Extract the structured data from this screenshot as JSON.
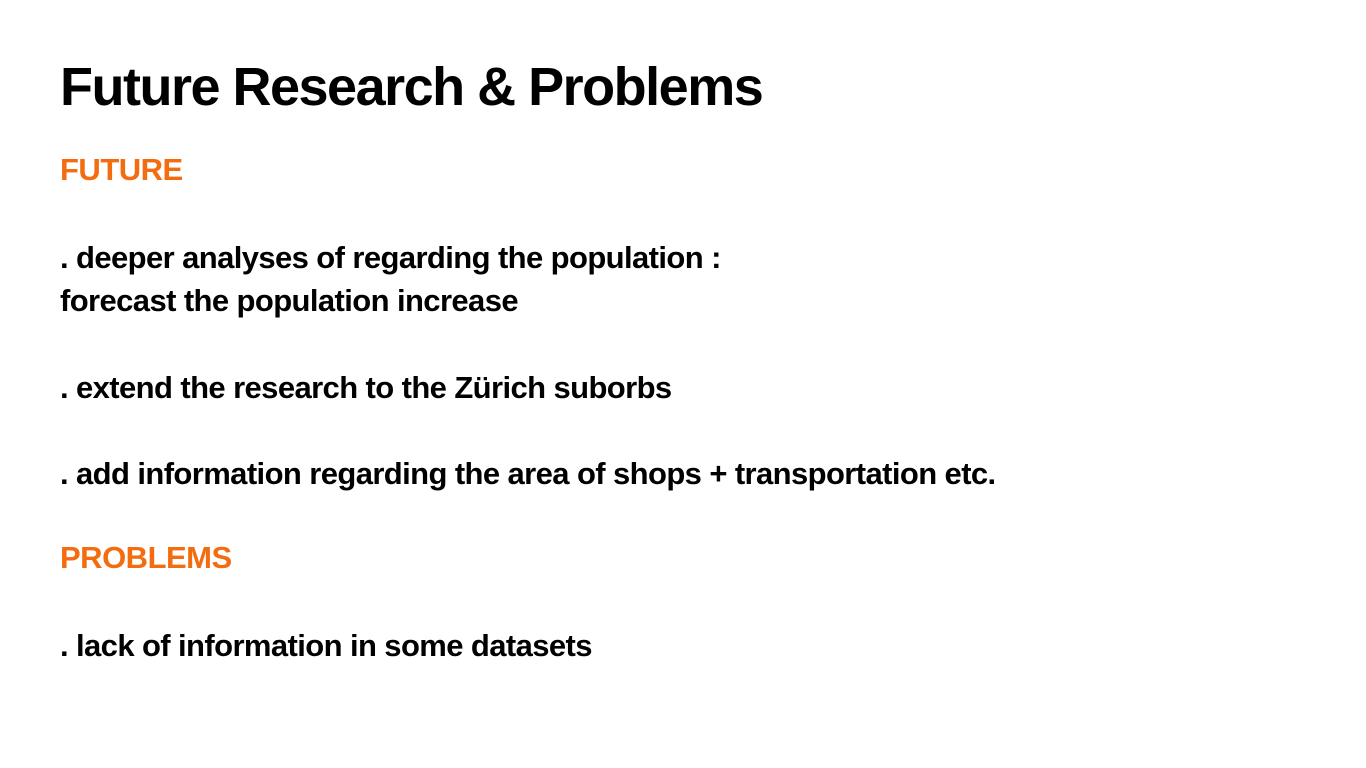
{
  "slide": {
    "title": "Future Research & Problems",
    "accent_color": "#f36c0f",
    "future": {
      "heading": "FUTURE",
      "items": [
        {
          "line1": ". deeper analyses of regarding the population :",
          "line2": "forecast the population increase"
        },
        {
          "line1": ". extend the research to the Zürich suborbs"
        },
        {
          "line1": ". add information regarding the area of shops + transportation etc."
        }
      ]
    },
    "problems": {
      "heading": "PROBLEMS",
      "items": [
        {
          "line1": ". lack of information in some datasets"
        }
      ]
    }
  }
}
